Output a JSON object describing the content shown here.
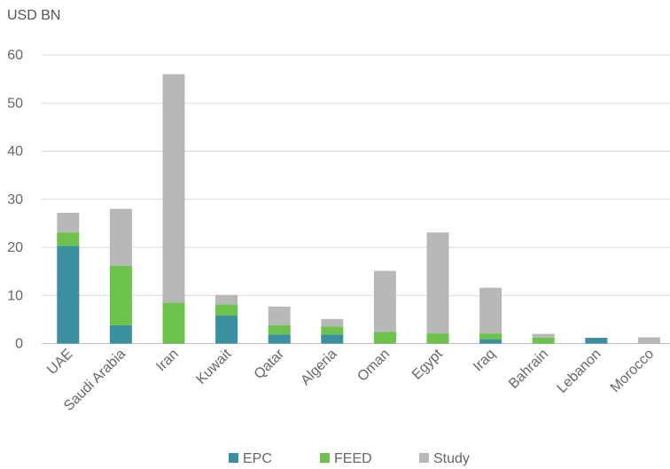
{
  "chart_data": {
    "type": "bar",
    "stacked": true,
    "title": "",
    "xlabel": "",
    "ylabel": "USD BN",
    "ylim": [
      0,
      60
    ],
    "yticks": [
      0,
      10,
      20,
      30,
      40,
      50,
      60
    ],
    "grid": true,
    "legend_position": "bottom",
    "categories": [
      "UAE",
      "Saudi Arabia",
      "Iran",
      "Kuwait",
      "Qatar",
      "Algeria",
      "Oman",
      "Egypt",
      "Iraq",
      "Bahrain",
      "Lebanon",
      "Morocco"
    ],
    "series": [
      {
        "name": "EPC",
        "color": "#3a8fa0",
        "values": [
          20.3,
          3.8,
          0,
          5.8,
          1.9,
          1.9,
          0,
          0,
          0.9,
          0,
          1.2,
          0
        ]
      },
      {
        "name": "FEED",
        "color": "#6cc24a",
        "values": [
          2.8,
          12.4,
          8.5,
          2.3,
          1.9,
          1.6,
          2.4,
          2.1,
          1.2,
          1.2,
          0,
          0
        ]
      },
      {
        "name": "Study",
        "color": "#b8b8b8",
        "values": [
          4.1,
          11.8,
          47.5,
          2.0,
          3.9,
          1.6,
          12.7,
          21.0,
          9.5,
          0.8,
          0,
          1.3
        ]
      }
    ]
  }
}
